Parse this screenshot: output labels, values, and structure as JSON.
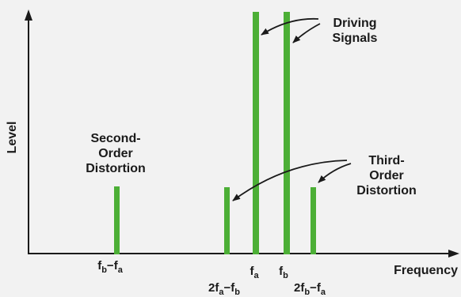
{
  "colors": {
    "background": "#f2f2f2",
    "bar": "#4caf36",
    "ink": "#1a1a1a"
  },
  "axes": {
    "y_label": "Level",
    "x_label": "Frequency"
  },
  "annotations": {
    "driving": [
      "Driving",
      "Signals"
    ],
    "second_order": [
      "Second-",
      "Order",
      "Distortion"
    ],
    "third_order": [
      "Third-",
      "Order",
      "Distortion"
    ]
  },
  "tick_labels": {
    "fb_minus_fa": {
      "p1": "f",
      "s1": "b",
      "op": "−",
      "p2": "f",
      "s2": "a"
    },
    "two_fa_minus_fb": {
      "p1": "2f",
      "s1": "a",
      "op": "−",
      "p2": "f",
      "s2": "b"
    },
    "fa": {
      "p1": "f",
      "s1": "a"
    },
    "fb": {
      "p1": "f",
      "s1": "b"
    },
    "two_fb_minus_fa": {
      "p1": "2f",
      "s1": "b",
      "op": "−",
      "p2": "f",
      "s2": "a"
    }
  }
}
